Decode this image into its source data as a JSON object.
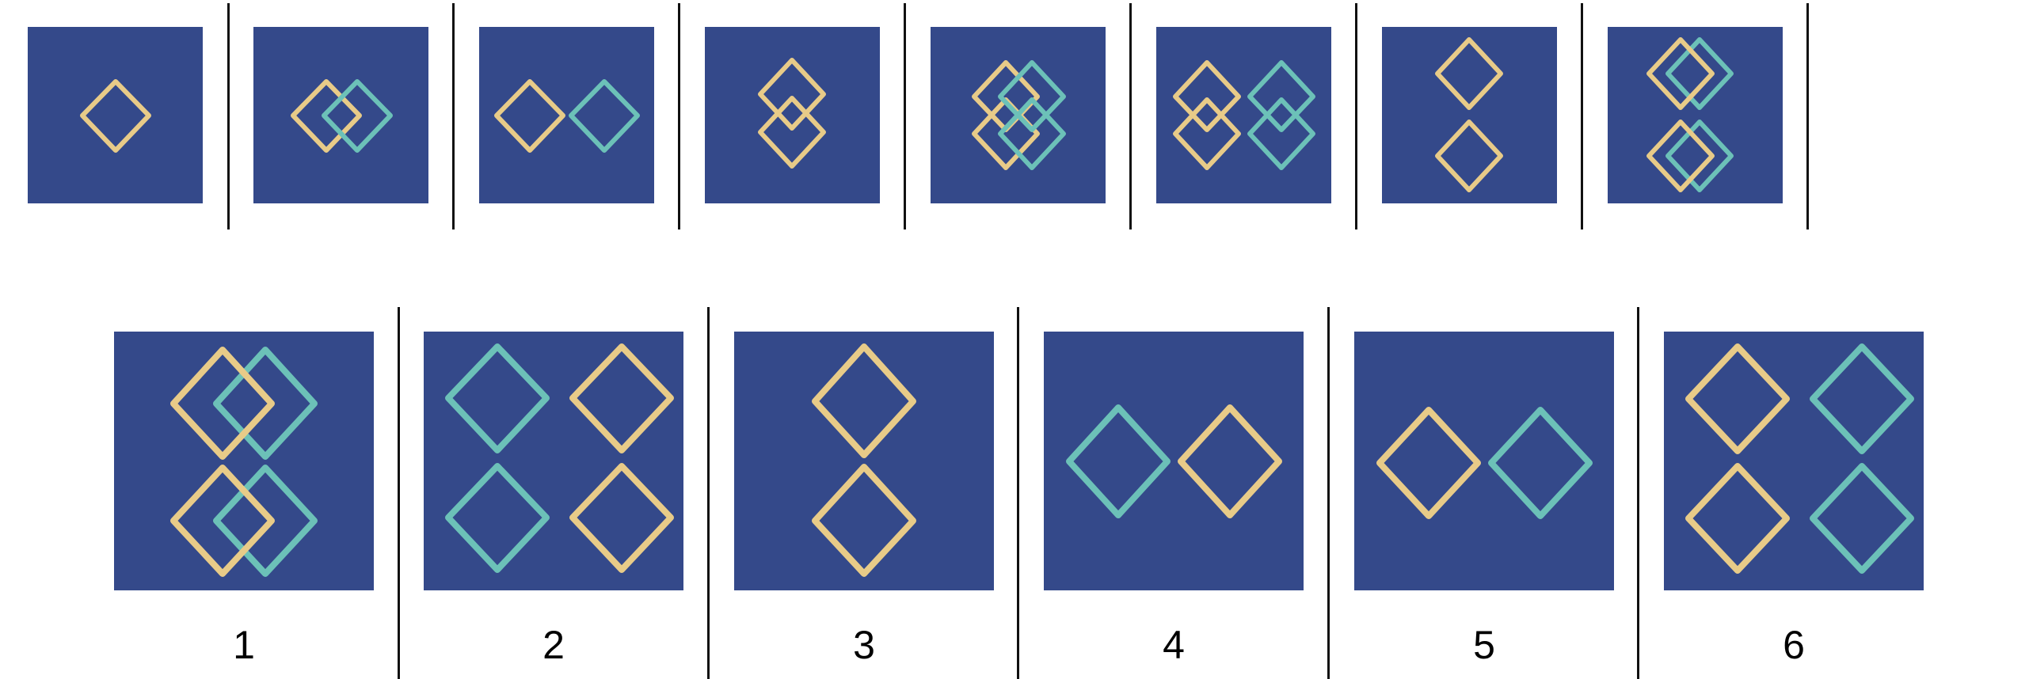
{
  "colors": {
    "panel_bg": "#34498a",
    "yellow": "#e8cb88",
    "teal": "#6cc1b8",
    "divider": "#111111"
  },
  "sequence": [
    {
      "shapes": [
        {
          "color": "yellow",
          "pos": "center"
        }
      ]
    },
    {
      "shapes": [
        {
          "color": "yellow",
          "pos": "center-left-overlap"
        },
        {
          "color": "teal",
          "pos": "center-right-overlap"
        }
      ]
    },
    {
      "shapes": [
        {
          "color": "yellow",
          "pos": "left"
        },
        {
          "color": "teal",
          "pos": "right"
        }
      ]
    },
    {
      "shapes": [
        {
          "color": "yellow",
          "pos": "center-up-overlap"
        },
        {
          "color": "yellow",
          "pos": "center-down-overlap"
        }
      ]
    },
    {
      "shapes": [
        {
          "color": "yellow",
          "pos": "left-overlap-2x2"
        },
        {
          "color": "teal",
          "pos": "right-overlap-2x2"
        }
      ]
    },
    {
      "shapes": [
        {
          "color": "yellow",
          "pos": "left-vertical-overlap-pair"
        },
        {
          "color": "teal",
          "pos": "right-vertical-overlap-pair"
        }
      ]
    },
    {
      "shapes": [
        {
          "color": "yellow",
          "pos": "top"
        },
        {
          "color": "yellow",
          "pos": "bottom"
        }
      ]
    },
    {
      "shapes": [
        {
          "color": "mixed",
          "pos": "top-and-bottom-overlap-pairs"
        }
      ]
    }
  ],
  "options": [
    {
      "label": "1"
    },
    {
      "label": "2"
    },
    {
      "label": "3"
    },
    {
      "label": "4"
    },
    {
      "label": "5"
    },
    {
      "label": "6"
    }
  ]
}
